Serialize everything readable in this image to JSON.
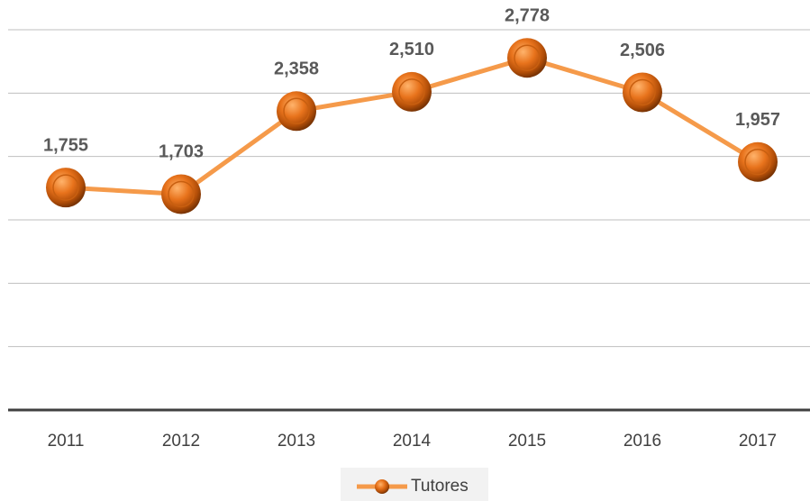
{
  "chart_data": {
    "type": "line",
    "categories": [
      "2011",
      "2012",
      "2013",
      "2014",
      "2015",
      "2016",
      "2017"
    ],
    "series": [
      {
        "name": "Tutores",
        "color": "#f59a4a",
        "values": [
          1755,
          1703,
          2358,
          2510,
          2778,
          2506,
          1957
        ],
        "value_labels": [
          "1,755",
          "1,703",
          "2,358",
          "2,510",
          "2,778",
          "2,506",
          "1,957"
        ]
      }
    ],
    "ylim": [
      0,
      3000
    ],
    "yticks": [
      0,
      500,
      1000,
      1500,
      2000,
      2500,
      3000
    ],
    "grid": true,
    "legend": "bottom"
  }
}
